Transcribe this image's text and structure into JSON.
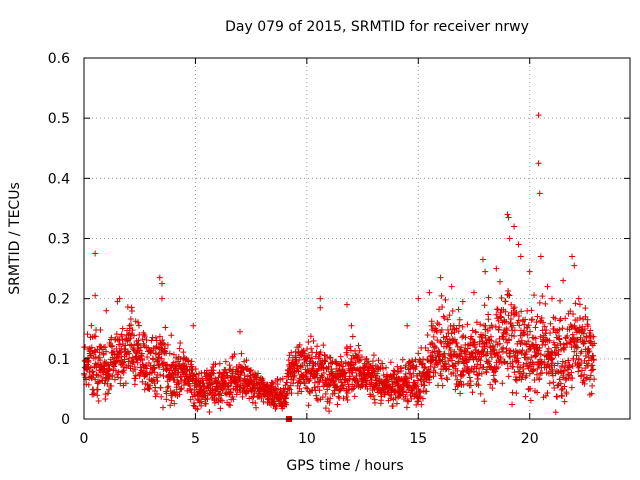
{
  "chart_data": {
    "type": "scatter",
    "title": "Day 079 of 2015, SRMTID for receiver nrwy",
    "xlabel": "GPS time / hours",
    "ylabel": "SRMTID / TECUs",
    "xlim": [
      0,
      24.5
    ],
    "ylim": [
      0,
      0.6
    ],
    "x_ticks": [
      0,
      5,
      10,
      15,
      20
    ],
    "x_tick_labels": [
      "0",
      "5",
      "10",
      "15",
      "20"
    ],
    "y_ticks": [
      0,
      0.1,
      0.2,
      0.3,
      0.4,
      0.5,
      0.6
    ],
    "y_tick_labels": [
      "0",
      "0.1",
      "0.2",
      "0.3",
      "0.4",
      "0.5",
      "0.6"
    ],
    "grid": true,
    "marker": "+",
    "color": "#e00000",
    "series": [
      {
        "name": "SRMTID",
        "level_profile": {
          "x": [
            0,
            0.5,
            1,
            1.5,
            2,
            2.5,
            3,
            3.5,
            4,
            4.5,
            5,
            5.5,
            6,
            6.5,
            7,
            7.5,
            8,
            8.5,
            9,
            9.2,
            9.5,
            10,
            10.5,
            11,
            11.5,
            12,
            12.5,
            13,
            13.5,
            14,
            14.5,
            15,
            15.5,
            16,
            16.5,
            17,
            17.5,
            18,
            18.5,
            19,
            19.5,
            20,
            20.5,
            21,
            21.5,
            22,
            22.5,
            22.9
          ],
          "y": [
            0.09,
            0.1,
            0.08,
            0.1,
            0.12,
            0.11,
            0.08,
            0.1,
            0.07,
            0.08,
            0.05,
            0.05,
            0.06,
            0.06,
            0.07,
            0.06,
            0.05,
            0.04,
            0.04,
            0.08,
            0.09,
            0.08,
            0.08,
            0.07,
            0.07,
            0.08,
            0.07,
            0.07,
            0.06,
            0.06,
            0.06,
            0.07,
            0.09,
            0.11,
            0.12,
            0.1,
            0.1,
            0.11,
            0.12,
            0.14,
            0.12,
            0.1,
            0.11,
            0.1,
            0.1,
            0.12,
            0.11,
            0.1
          ],
          "spread": [
            0.03,
            0.05,
            0.04,
            0.04,
            0.05,
            0.04,
            0.04,
            0.05,
            0.04,
            0.03,
            0.03,
            0.03,
            0.03,
            0.03,
            0.03,
            0.03,
            0.02,
            0.02,
            0.02,
            0.03,
            0.03,
            0.04,
            0.04,
            0.04,
            0.03,
            0.04,
            0.03,
            0.03,
            0.03,
            0.03,
            0.03,
            0.04,
            0.05,
            0.06,
            0.05,
            0.05,
            0.05,
            0.06,
            0.06,
            0.08,
            0.07,
            0.07,
            0.07,
            0.06,
            0.06,
            0.07,
            0.05,
            0.04
          ]
        },
        "spikes": [
          {
            "x": 0.5,
            "y": 0.275
          },
          {
            "x": 0.5,
            "y": 0.205
          },
          {
            "x": 1.0,
            "y": 0.18
          },
          {
            "x": 1.5,
            "y": 0.195
          },
          {
            "x": 1.6,
            "y": 0.2
          },
          {
            "x": 3.4,
            "y": 0.235
          },
          {
            "x": 3.5,
            "y": 0.225
          },
          {
            "x": 3.5,
            "y": 0.2
          },
          {
            "x": 4.9,
            "y": 0.155
          },
          {
            "x": 7.0,
            "y": 0.145
          },
          {
            "x": 10.6,
            "y": 0.2
          },
          {
            "x": 10.6,
            "y": 0.185
          },
          {
            "x": 11.8,
            "y": 0.19
          },
          {
            "x": 12.0,
            "y": 0.155
          },
          {
            "x": 14.5,
            "y": 0.155
          },
          {
            "x": 15.0,
            "y": 0.2
          },
          {
            "x": 15.5,
            "y": 0.21
          },
          {
            "x": 16.0,
            "y": 0.235
          },
          {
            "x": 16.5,
            "y": 0.22
          },
          {
            "x": 17.0,
            "y": 0.195
          },
          {
            "x": 17.5,
            "y": 0.21
          },
          {
            "x": 17.9,
            "y": 0.265
          },
          {
            "x": 18.0,
            "y": 0.245
          },
          {
            "x": 18.5,
            "y": 0.25
          },
          {
            "x": 19.0,
            "y": 0.34
          },
          {
            "x": 19.05,
            "y": 0.335
          },
          {
            "x": 19.1,
            "y": 0.3
          },
          {
            "x": 19.3,
            "y": 0.32
          },
          {
            "x": 19.5,
            "y": 0.29
          },
          {
            "x": 19.6,
            "y": 0.27
          },
          {
            "x": 20.0,
            "y": 0.245
          },
          {
            "x": 20.4,
            "y": 0.505
          },
          {
            "x": 20.4,
            "y": 0.425
          },
          {
            "x": 20.45,
            "y": 0.375
          },
          {
            "x": 20.5,
            "y": 0.27
          },
          {
            "x": 20.8,
            "y": 0.22
          },
          {
            "x": 21.0,
            "y": 0.2
          },
          {
            "x": 21.5,
            "y": 0.23
          },
          {
            "x": 21.9,
            "y": 0.27
          },
          {
            "x": 22.0,
            "y": 0.255
          },
          {
            "x": 22.2,
            "y": 0.2
          },
          {
            "x": 22.5,
            "y": 0.17
          },
          {
            "x": 22.6,
            "y": 0.165
          },
          {
            "x": 22.7,
            "y": 0.04
          },
          {
            "x": 22.8,
            "y": 0.055
          }
        ],
        "special_point": {
          "x": 9.2,
          "y": 0.0,
          "marker": "square"
        }
      }
    ]
  }
}
